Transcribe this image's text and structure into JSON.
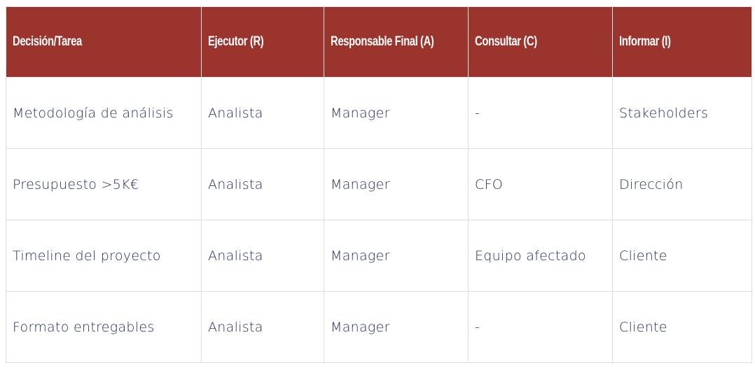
{
  "table": {
    "header": [
      "Decisión/Tarea",
      "Ejecutor (R)",
      "Responsable Final (A)",
      "Consultar (C)",
      "Informar (I)"
    ],
    "rows": [
      [
        "Metodología de análisis",
        "Analista",
        "Manager",
        "-",
        "Stakeholders"
      ],
      [
        "Presupuesto >5K€",
        "Analista",
        "Manager",
        "CFO",
        "Dirección"
      ],
      [
        "Timeline del proyecto",
        "Analista",
        "Manager",
        "Equipo afectado",
        "Cliente"
      ],
      [
        "Formato entregables",
        "Analista",
        "Manager",
        "-",
        "Cliente"
      ]
    ]
  }
}
